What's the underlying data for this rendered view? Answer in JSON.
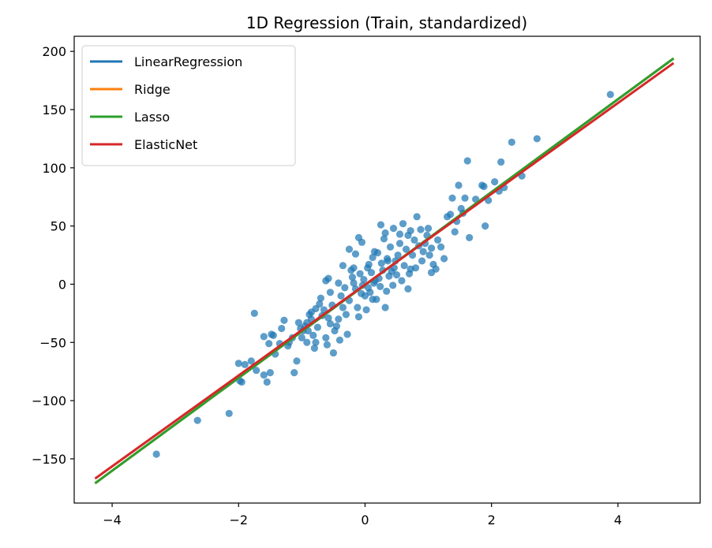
{
  "chart_data": {
    "type": "scatter",
    "title": "1D Regression (Train, standardized)",
    "xlabel": "",
    "ylabel": "",
    "xlim": [
      -4.6,
      5.3
    ],
    "ylim": [
      -188,
      213
    ],
    "xticks": [
      -4,
      -2,
      0,
      2,
      4
    ],
    "yticks": [
      -150,
      -100,
      -50,
      0,
      50,
      100,
      150,
      200
    ],
    "xtick_labels": [
      "−4",
      "−2",
      "0",
      "2",
      "4"
    ],
    "ytick_labels": [
      "−150",
      "−100",
      "−50",
      "0",
      "50",
      "100",
      "150",
      "200"
    ],
    "grid": false,
    "legend_position": "top-left",
    "scatter": {
      "color": "#1f77b4",
      "points": [
        [
          -3.3,
          -146
        ],
        [
          -2.65,
          -117
        ],
        [
          -2.15,
          -111
        ],
        [
          -1.98,
          -83
        ],
        [
          -1.95,
          -84
        ],
        [
          -2.0,
          -68
        ],
        [
          -1.9,
          -69
        ],
        [
          -1.8,
          -66
        ],
        [
          -1.72,
          -74
        ],
        [
          -1.6,
          -78
        ],
        [
          -1.55,
          -84
        ],
        [
          -1.5,
          -76
        ],
        [
          -1.42,
          -60
        ],
        [
          -1.35,
          -51
        ],
        [
          -1.6,
          -45
        ],
        [
          -1.52,
          -51
        ],
        [
          -1.48,
          -43
        ],
        [
          -1.45,
          -44
        ],
        [
          -1.75,
          -25
        ],
        [
          -1.32,
          -38
        ],
        [
          -1.28,
          -31
        ],
        [
          -1.22,
          -53
        ],
        [
          -1.2,
          -50
        ],
        [
          -1.15,
          -46
        ],
        [
          -1.12,
          -76
        ],
        [
          -1.08,
          -66
        ],
        [
          -1.05,
          -33
        ],
        [
          -1.0,
          -46
        ],
        [
          -0.98,
          -40
        ],
        [
          -0.95,
          -36
        ],
        [
          -0.92,
          -50
        ],
        [
          -0.9,
          -40
        ],
        [
          -0.88,
          -26
        ],
        [
          -0.85,
          -30
        ],
        [
          -0.82,
          -44
        ],
        [
          -0.8,
          -55
        ],
        [
          -0.78,
          -50
        ],
        [
          -0.75,
          -37
        ],
        [
          -0.72,
          -17
        ],
        [
          -0.7,
          -12
        ],
        [
          -0.68,
          -27
        ],
        [
          -0.65,
          -22
        ],
        [
          -0.62,
          -46
        ],
        [
          -0.6,
          -52
        ],
        [
          -0.58,
          -29
        ],
        [
          -0.55,
          -34
        ],
        [
          -0.52,
          -18
        ],
        [
          -0.5,
          -59
        ],
        [
          -0.48,
          -40
        ],
        [
          -0.45,
          -36
        ],
        [
          -0.42,
          -30
        ],
        [
          -0.4,
          -48
        ],
        [
          -0.38,
          -10
        ],
        [
          -0.35,
          -20
        ],
        [
          -0.32,
          -3
        ],
        [
          -0.3,
          -26
        ],
        [
          -0.28,
          -43
        ],
        [
          -0.25,
          -14
        ],
        [
          -0.22,
          12
        ],
        [
          -0.2,
          6
        ],
        [
          -0.18,
          1
        ],
        [
          -0.15,
          -4
        ],
        [
          -0.12,
          -20
        ],
        [
          -0.1,
          -28
        ],
        [
          -0.08,
          9
        ],
        [
          -0.06,
          -8
        ],
        [
          -0.04,
          -1
        ],
        [
          -0.02,
          4
        ],
        [
          0.0,
          -10
        ],
        [
          0.02,
          -22
        ],
        [
          0.04,
          14
        ],
        [
          0.06,
          17
        ],
        [
          0.08,
          -7
        ],
        [
          0.1,
          10
        ],
        [
          0.12,
          23
        ],
        [
          0.14,
          1
        ],
        [
          0.16,
          3
        ],
        [
          0.18,
          -13
        ],
        [
          0.2,
          27
        ],
        [
          0.22,
          5
        ],
        [
          0.24,
          -2
        ],
        [
          0.26,
          18
        ],
        [
          0.28,
          12
        ],
        [
          0.3,
          39
        ],
        [
          0.32,
          44
        ],
        [
          0.34,
          -6
        ],
        [
          0.36,
          20
        ],
        [
          0.38,
          7
        ],
        [
          0.4,
          32
        ],
        [
          0.42,
          11
        ],
        [
          0.44,
          -1
        ],
        [
          0.46,
          14
        ],
        [
          0.48,
          20
        ],
        [
          0.5,
          8
        ],
        [
          0.52,
          25
        ],
        [
          0.55,
          35
        ],
        [
          0.58,
          3
        ],
        [
          0.6,
          52
        ],
        [
          0.62,
          16
        ],
        [
          0.65,
          30
        ],
        [
          0.68,
          42
        ],
        [
          0.7,
          9
        ],
        [
          0.72,
          46
        ],
        [
          0.75,
          25
        ],
        [
          0.78,
          38
        ],
        [
          0.8,
          14
        ],
        [
          0.82,
          58
        ],
        [
          0.85,
          33
        ],
        [
          0.88,
          47
        ],
        [
          0.9,
          20
        ],
        [
          0.92,
          28
        ],
        [
          0.95,
          35
        ],
        [
          0.98,
          42
        ],
        [
          1.0,
          48
        ],
        [
          1.02,
          25
        ],
        [
          1.05,
          31
        ],
        [
          1.08,
          17
        ],
        [
          1.12,
          13
        ],
        [
          1.15,
          38
        ],
        [
          1.2,
          32
        ],
        [
          1.25,
          22
        ],
        [
          1.3,
          58
        ],
        [
          1.35,
          60
        ],
        [
          1.38,
          74
        ],
        [
          1.42,
          45
        ],
        [
          1.45,
          54
        ],
        [
          1.48,
          85
        ],
        [
          1.52,
          65
        ],
        [
          1.55,
          61
        ],
        [
          1.58,
          74
        ],
        [
          1.62,
          106
        ],
        [
          1.65,
          40
        ],
        [
          1.75,
          73
        ],
        [
          1.85,
          85
        ],
        [
          1.88,
          84
        ],
        [
          1.9,
          50
        ],
        [
          1.95,
          72
        ],
        [
          2.05,
          88
        ],
        [
          2.12,
          80
        ],
        [
          2.15,
          105
        ],
        [
          2.2,
          83
        ],
        [
          2.32,
          122
        ],
        [
          2.48,
          93
        ],
        [
          2.72,
          125
        ],
        [
          3.88,
          163
        ],
        [
          -0.25,
          30
        ],
        [
          -0.1,
          40
        ],
        [
          0.15,
          28
        ],
        [
          0.35,
          22
        ],
        [
          -0.35,
          16
        ],
        [
          -0.42,
          1
        ],
        [
          -0.58,
          5
        ],
        [
          -0.62,
          3
        ],
        [
          -0.15,
          26
        ],
        [
          -0.05,
          36
        ],
        [
          0.45,
          48
        ],
        [
          0.55,
          43
        ],
        [
          0.25,
          51
        ],
        [
          0.72,
          13
        ],
        [
          1.05,
          10
        ],
        [
          0.68,
          -4
        ],
        [
          0.32,
          -20
        ],
        [
          0.12,
          -13
        ],
        [
          -0.18,
          14
        ],
        [
          -0.78,
          -21
        ],
        [
          -0.92,
          -33
        ],
        [
          -1.02,
          -38
        ],
        [
          -0.85,
          -24
        ],
        [
          -0.55,
          -7
        ],
        [
          0.05,
          -3
        ]
      ]
    },
    "series": [
      {
        "name": "LinearRegression",
        "color": "#1f77b4",
        "x": [
          -4.27,
          4.88
        ],
        "y": [
          -171,
          194
        ]
      },
      {
        "name": "Ridge",
        "color": "#ff7f0e",
        "x": [
          -4.27,
          4.88
        ],
        "y": [
          -171,
          194
        ]
      },
      {
        "name": "Lasso",
        "color": "#2ca02c",
        "x": [
          -4.27,
          4.88
        ],
        "y": [
          -171,
          194
        ]
      },
      {
        "name": "ElasticNet",
        "color": "#d62728",
        "x": [
          -4.27,
          4.88
        ],
        "y": [
          -167,
          190
        ]
      }
    ]
  }
}
